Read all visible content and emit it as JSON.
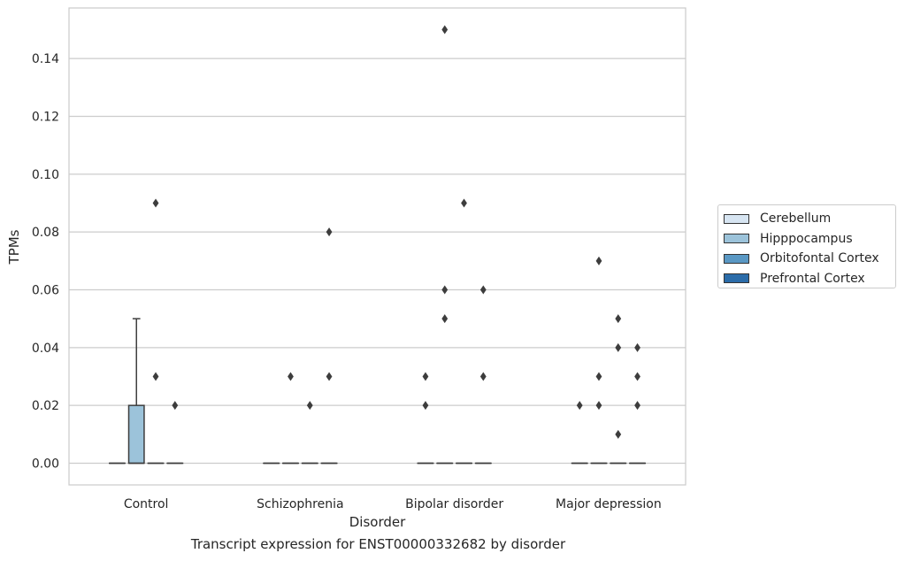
{
  "chart_data": {
    "type": "box",
    "caption": "Transcript expression for ENST00000332682 by disorder",
    "xlabel": "Disorder",
    "ylabel": "TPMs",
    "ylim": [
      -0.0075,
      0.1575
    ],
    "yticks": [
      0.0,
      0.02,
      0.04,
      0.06,
      0.08,
      0.1,
      0.12,
      0.14
    ],
    "ytick_labels": [
      "0.00",
      "0.02",
      "0.04",
      "0.06",
      "0.08",
      "0.10",
      "0.12",
      "0.14"
    ],
    "grid": true,
    "legend_position": "right",
    "categories": [
      "Control",
      "Schizophrenia",
      "Bipolar disorder",
      "Major depression"
    ],
    "series": [
      {
        "name": "Cerebellum",
        "color": "#d7e5f2",
        "boxes": [
          {
            "q1": 0,
            "median": 0,
            "q3": 0,
            "whislo": 0,
            "whishi": 0,
            "fliers": []
          },
          {
            "q1": 0,
            "median": 0,
            "q3": 0,
            "whislo": 0,
            "whishi": 0,
            "fliers": []
          },
          {
            "q1": 0,
            "median": 0,
            "q3": 0,
            "whislo": 0,
            "whishi": 0,
            "fliers": [
              0.02,
              0.03
            ]
          },
          {
            "q1": 0,
            "median": 0,
            "q3": 0,
            "whislo": 0,
            "whishi": 0,
            "fliers": [
              0.02
            ]
          }
        ]
      },
      {
        "name": "Hipppocampus",
        "color": "#9cc3da",
        "boxes": [
          {
            "q1": 0,
            "median": 0,
            "q3": 0.02,
            "whislo": 0,
            "whishi": 0.05,
            "fliers": []
          },
          {
            "q1": 0,
            "median": 0,
            "q3": 0,
            "whislo": 0,
            "whishi": 0,
            "fliers": [
              0.03
            ]
          },
          {
            "q1": 0,
            "median": 0,
            "q3": 0,
            "whislo": 0,
            "whishi": 0,
            "fliers": [
              0.05,
              0.06,
              0.15
            ]
          },
          {
            "q1": 0,
            "median": 0,
            "q3": 0,
            "whislo": 0,
            "whishi": 0,
            "fliers": [
              0.02,
              0.03,
              0.07
            ]
          }
        ]
      },
      {
        "name": "Orbitofontal Cortex",
        "color": "#5a98c4",
        "boxes": [
          {
            "q1": 0,
            "median": 0,
            "q3": 0,
            "whislo": 0,
            "whishi": 0,
            "fliers": [
              0.03,
              0.09
            ]
          },
          {
            "q1": 0,
            "median": 0,
            "q3": 0,
            "whislo": 0,
            "whishi": 0,
            "fliers": [
              0.02
            ]
          },
          {
            "q1": 0,
            "median": 0,
            "q3": 0,
            "whislo": 0,
            "whishi": 0,
            "fliers": [
              0.09
            ]
          },
          {
            "q1": 0,
            "median": 0,
            "q3": 0,
            "whislo": 0,
            "whishi": 0,
            "fliers": [
              0.01,
              0.04,
              0.05
            ]
          }
        ]
      },
      {
        "name": "Prefrontal Cortex",
        "color": "#2b6ca9",
        "boxes": [
          {
            "q1": 0,
            "median": 0,
            "q3": 0,
            "whislo": 0,
            "whishi": 0,
            "fliers": [
              0.02
            ]
          },
          {
            "q1": 0,
            "median": 0,
            "q3": 0,
            "whislo": 0,
            "whishi": 0,
            "fliers": [
              0.03,
              0.08
            ]
          },
          {
            "q1": 0,
            "median": 0,
            "q3": 0,
            "whislo": 0,
            "whishi": 0,
            "fliers": [
              0.03,
              0.06
            ]
          },
          {
            "q1": 0,
            "median": 0,
            "q3": 0,
            "whislo": 0,
            "whishi": 0,
            "fliers": [
              0.02,
              0.03,
              0.04
            ]
          }
        ]
      }
    ]
  }
}
